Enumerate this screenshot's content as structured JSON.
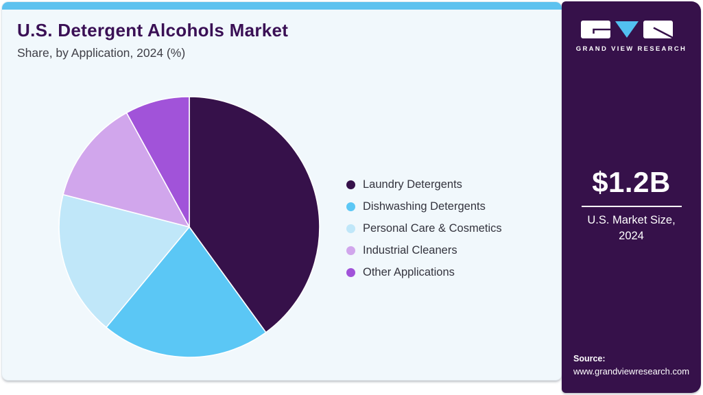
{
  "header": {
    "title": "U.S. Detergent Alcohols Market",
    "subtitle": "Share, by Application, 2024 (%)"
  },
  "chart_data": {
    "type": "pie",
    "title": "U.S. Detergent Alcohols Market Share, by Application, 2024 (%)",
    "start_angle_deg": 0,
    "direction": "clockwise",
    "legend_position": "right",
    "data_labels": false,
    "slices": [
      {
        "label": "Laundry Detergents",
        "value": 40,
        "color": "#36114a"
      },
      {
        "label": "Dishwashing Detergents",
        "value": 21,
        "color": "#5bc7f5"
      },
      {
        "label": "Personal Care & Cosmetics",
        "value": 18,
        "color": "#c0e7f9"
      },
      {
        "label": "Industrial Cleaners",
        "value": 13,
        "color": "#d1a6ec"
      },
      {
        "label": "Other Applications",
        "value": 8,
        "color": "#a153d9"
      }
    ]
  },
  "sidebar": {
    "brand_name": "GRAND VIEW RESEARCH",
    "market_size_value": "$1.2B",
    "market_size_label": "U.S. Market Size, 2024",
    "source_label": "Source:",
    "source_url": "www.grandviewresearch.com"
  },
  "theme": {
    "top_bar_color": "#5ec2ef",
    "panel_background": "#f1f8fc",
    "sidebar_background": "#36114a",
    "title_color": "#3a1055",
    "body_text_color": "#34343e",
    "logo_triangle_color": "#52c0f0",
    "pie_slice_border_color": "#ffffff"
  }
}
